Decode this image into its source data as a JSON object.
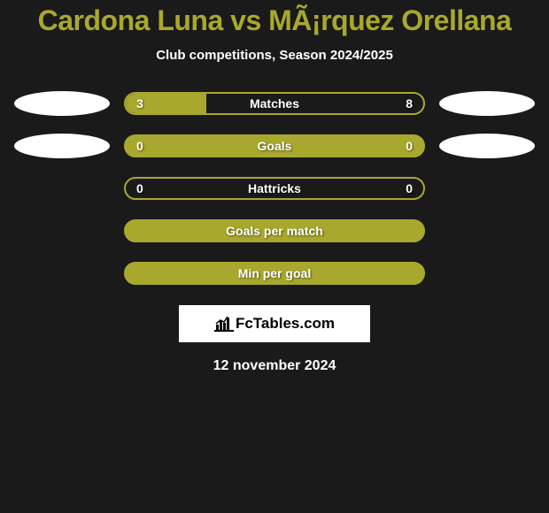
{
  "header": {
    "title": "Cardona Luna vs MÃ¡rquez Orellana",
    "subtitle": "Club competitions, Season 2024/2025",
    "title_color": "#a8a82e",
    "subtitle_color": "#ffffff"
  },
  "stats": [
    {
      "label": "Matches",
      "left_value": "3",
      "right_value": "8",
      "fill_percent": 27,
      "show_left_ellipse": true,
      "show_right_ellipse": true
    },
    {
      "label": "Goals",
      "left_value": "0",
      "right_value": "0",
      "fill_percent": 100,
      "show_left_ellipse": true,
      "show_right_ellipse": true
    },
    {
      "label": "Hattricks",
      "left_value": "0",
      "right_value": "0",
      "fill_percent": 0,
      "show_left_ellipse": false,
      "show_right_ellipse": false
    },
    {
      "label": "Goals per match",
      "left_value": "",
      "right_value": "",
      "fill_percent": 100,
      "show_left_ellipse": false,
      "show_right_ellipse": false
    },
    {
      "label": "Min per goal",
      "left_value": "",
      "right_value": "",
      "fill_percent": 100,
      "show_left_ellipse": false,
      "show_right_ellipse": false
    }
  ],
  "brand": {
    "text": "FcTables.com"
  },
  "footer": {
    "date": "12 november 2024"
  },
  "colors": {
    "background": "#1a1a1a",
    "accent": "#a8a82e",
    "text": "#ffffff",
    "brand_bg": "#ffffff",
    "brand_text": "#000000"
  }
}
